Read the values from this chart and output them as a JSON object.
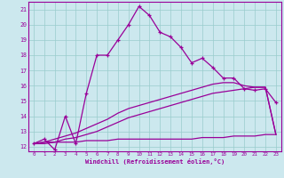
{
  "xlabel": "Windchill (Refroidissement éolien,°C)",
  "background_color": "#cce8ee",
  "grid_color": "#99cccc",
  "line_color": "#990099",
  "x_values": [
    0,
    1,
    2,
    3,
    4,
    5,
    6,
    7,
    8,
    9,
    10,
    11,
    12,
    13,
    14,
    15,
    16,
    17,
    18,
    19,
    20,
    21,
    22,
    23
  ],
  "main_curve": [
    12.2,
    12.5,
    11.8,
    14.0,
    12.2,
    15.5,
    18.0,
    18.0,
    19.0,
    20.0,
    21.2,
    20.6,
    19.5,
    19.2,
    18.5,
    17.5,
    17.8,
    17.2,
    16.5,
    16.5,
    15.8,
    15.7,
    15.8,
    14.9
  ],
  "line_flat": [
    12.2,
    12.3,
    12.3,
    12.3,
    12.3,
    12.4,
    12.4,
    12.4,
    12.5,
    12.5,
    12.5,
    12.5,
    12.5,
    12.5,
    12.5,
    12.5,
    12.6,
    12.6,
    12.6,
    12.7,
    12.7,
    12.7,
    12.8,
    12.8
  ],
  "line_mid": [
    12.2,
    12.2,
    12.3,
    12.5,
    12.6,
    12.8,
    13.0,
    13.3,
    13.6,
    13.9,
    14.1,
    14.3,
    14.5,
    14.7,
    14.9,
    15.1,
    15.3,
    15.5,
    15.6,
    15.7,
    15.8,
    15.9,
    15.9,
    12.8
  ],
  "line_high": [
    12.2,
    12.3,
    12.5,
    12.7,
    12.9,
    13.2,
    13.5,
    13.8,
    14.2,
    14.5,
    14.7,
    14.9,
    15.1,
    15.3,
    15.5,
    15.7,
    15.9,
    16.1,
    16.2,
    16.2,
    16.0,
    15.9,
    15.9,
    12.8
  ],
  "ylim": [
    11.7,
    21.5
  ],
  "xlim": [
    -0.5,
    23.5
  ],
  "yticks": [
    12,
    13,
    14,
    15,
    16,
    17,
    18,
    19,
    20,
    21
  ],
  "xticks": [
    0,
    1,
    2,
    3,
    4,
    5,
    6,
    7,
    8,
    9,
    10,
    11,
    12,
    13,
    14,
    15,
    16,
    17,
    18,
    19,
    20,
    21,
    22,
    23
  ]
}
